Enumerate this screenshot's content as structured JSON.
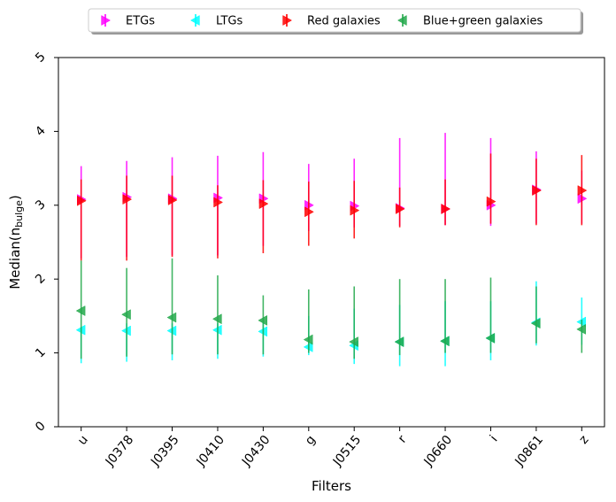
{
  "chart_data": {
    "type": "scatter",
    "categories": [
      "u",
      "J0378",
      "J0395",
      "J0410",
      "J0430",
      "g",
      "J0515",
      "r",
      "J0660",
      "i",
      "J0861",
      "z"
    ],
    "xlabel": "Filters",
    "ylabel": "Median(n",
    "ylabel_sub": "bulge",
    "ylabel_suffix": ")",
    "ylim": [
      0,
      5
    ],
    "yticks": [
      "0",
      "1",
      "2",
      "3",
      "4",
      "5"
    ],
    "grid": false,
    "legend_position": "top-center",
    "series": [
      {
        "name": "ETGs",
        "color": "#ff00ff",
        "marker": "triangle-right",
        "offset": 0,
        "values": [
          3.08,
          3.11,
          3.09,
          3.1,
          3.09,
          3.0,
          2.99,
          2.96,
          2.95,
          3.0,
          3.21,
          3.09
        ],
        "err_low": [
          2.28,
          2.3,
          2.32,
          2.32,
          2.45,
          2.65,
          2.7,
          2.72,
          2.73,
          2.72,
          2.75,
          2.75
        ],
        "err_high": [
          3.53,
          3.6,
          3.65,
          3.67,
          3.72,
          3.56,
          3.63,
          3.91,
          3.98,
          3.91,
          3.73,
          3.47
        ]
      },
      {
        "name": "LTGs",
        "color": "#00ffff",
        "marker": "triangle-left",
        "offset": 0,
        "values": [
          1.31,
          1.3,
          1.3,
          1.31,
          1.29,
          1.08,
          1.1,
          1.15,
          1.16,
          1.2,
          1.41,
          1.42
        ],
        "err_low": [
          0.86,
          0.88,
          0.9,
          0.92,
          0.95,
          0.97,
          0.85,
          0.82,
          0.82,
          0.9,
          1.1,
          1.11
        ],
        "err_high": [
          1.35,
          1.4,
          1.4,
          1.4,
          1.42,
          1.5,
          1.6,
          1.65,
          1.7,
          1.7,
          1.97,
          1.75
        ]
      },
      {
        "name": "Red galaxies",
        "color": "#ff0000",
        "marker": "triangle-right",
        "offset": 0,
        "values": [
          3.06,
          3.08,
          3.07,
          3.04,
          3.02,
          2.91,
          2.93,
          2.95,
          2.95,
          3.05,
          3.2,
          3.2
        ],
        "err_low": [
          2.25,
          2.25,
          2.3,
          2.28,
          2.35,
          2.45,
          2.55,
          2.7,
          2.73,
          2.75,
          2.73,
          2.73
        ],
        "err_high": [
          3.35,
          3.4,
          3.4,
          3.27,
          3.34,
          3.32,
          3.33,
          3.24,
          3.35,
          3.7,
          3.63,
          3.68
        ]
      },
      {
        "name": "Blue+green galaxies",
        "color": "#22a84a",
        "marker": "triangle-left",
        "offset": 0,
        "values": [
          1.57,
          1.52,
          1.48,
          1.46,
          1.44,
          1.18,
          1.15,
          1.15,
          1.16,
          1.2,
          1.4,
          1.32
        ],
        "err_low": [
          0.92,
          0.95,
          0.98,
          0.98,
          0.98,
          1.0,
          0.92,
          0.97,
          1.0,
          1.0,
          1.13,
          1.0
        ],
        "err_high": [
          2.25,
          2.15,
          2.28,
          2.05,
          1.78,
          1.86,
          1.9,
          2.0,
          2.0,
          2.02,
          1.9,
          1.45
        ]
      }
    ]
  }
}
